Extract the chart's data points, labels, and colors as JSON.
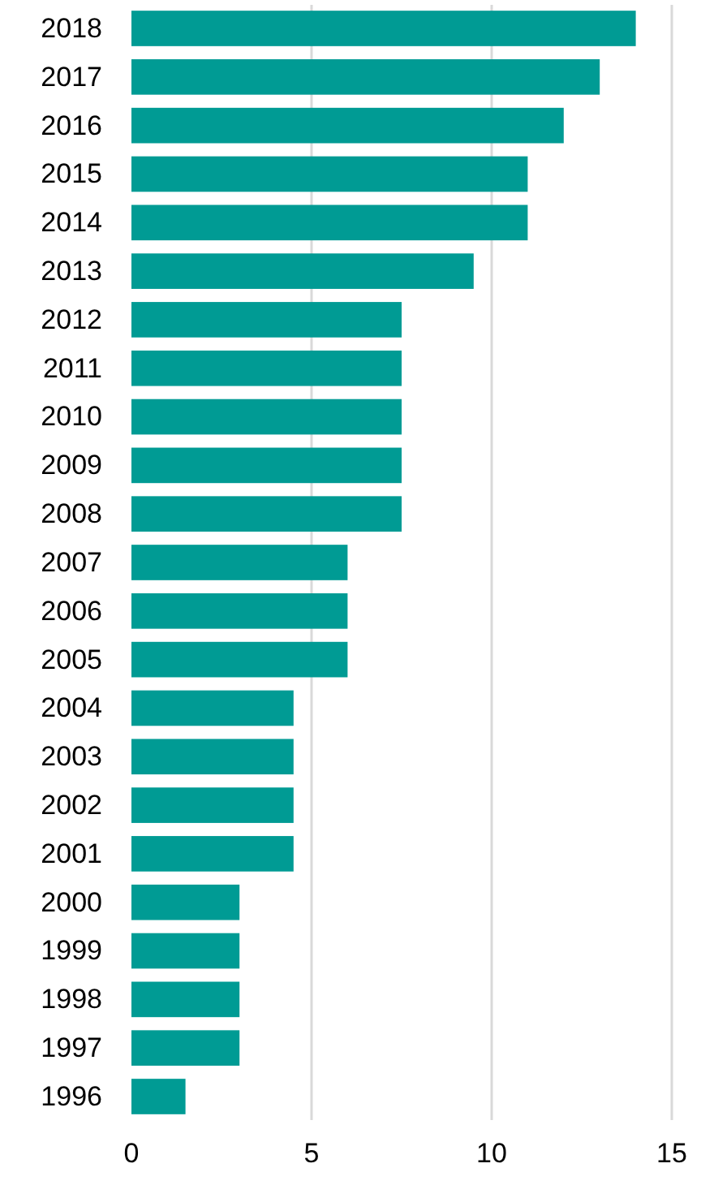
{
  "chart_data": {
    "type": "bar",
    "orientation": "horizontal",
    "categories": [
      "2018",
      "2017",
      "2016",
      "2015",
      "2014",
      "2013",
      "2012",
      "2011",
      "2010",
      "2009",
      "2008",
      "2007",
      "2006",
      "2005",
      "2004",
      "2003",
      "2002",
      "2001",
      "2000",
      "1999",
      "1998",
      "1997",
      "1996"
    ],
    "values": [
      14,
      13,
      12,
      11,
      11,
      9.5,
      7.5,
      7.5,
      7.5,
      7.5,
      7.5,
      6,
      6,
      6,
      4.5,
      4.5,
      4.5,
      4.5,
      3,
      3,
      3,
      3,
      1.5
    ],
    "color": "#009b94",
    "xlim": [
      0,
      15
    ],
    "xticks": [
      0,
      5,
      10,
      15
    ],
    "grid": "x"
  }
}
